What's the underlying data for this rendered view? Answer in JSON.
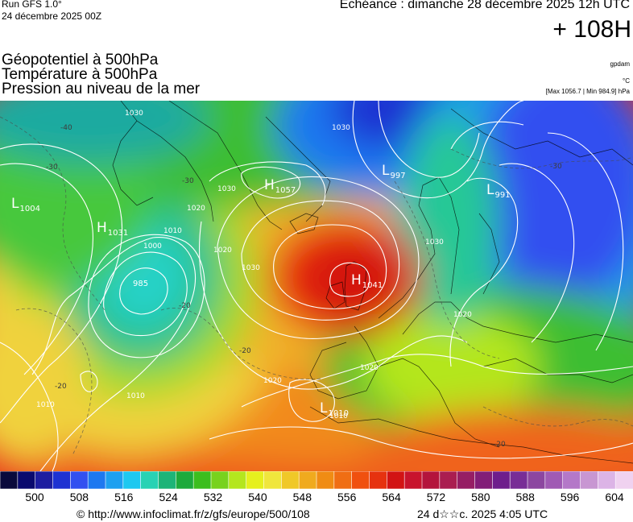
{
  "header": {
    "model": "Run GFS 1.0°",
    "run_date": "24 décembre 2025 00Z",
    "echeance": "Echéance : dimanche 28 décembre 2025 12h UTC",
    "horizon": "+ 108H"
  },
  "variables": [
    "Géopotentiel à 500hPa",
    "Température à 500hPa",
    "Pression au niveau de la mer"
  ],
  "units": {
    "geopotential": "gpdam",
    "temperature": "°C"
  },
  "extremes": "[Max 1056.7 | Min 984.9] hPa",
  "map": {
    "pressure_systems": [
      {
        "type": "L",
        "value": "1004"
      },
      {
        "type": "H",
        "value": "1031"
      },
      {
        "type": "H",
        "value": "1057"
      },
      {
        "type": "L",
        "value": "997"
      },
      {
        "type": "L",
        "value": "991"
      },
      {
        "type": "H",
        "value": "1041"
      },
      {
        "type": "L",
        "value": "1010"
      },
      {
        "type": "L",
        "value": "985"
      }
    ],
    "isobar_labels": [
      "1030",
      "1030",
      "1030",
      "1020",
      "1010",
      "1000",
      "1020",
      "1030",
      "1020",
      "1010",
      "1010",
      "1030",
      "1020",
      "1020",
      "1010"
    ],
    "temperature_labels": [
      "-40",
      "-30",
      "-30",
      "-20",
      "-20",
      "-30",
      "-20",
      "-20"
    ]
  },
  "colorbar": {
    "labels": [
      "500",
      "508",
      "516",
      "524",
      "532",
      "540",
      "548",
      "556",
      "564",
      "572",
      "580",
      "588",
      "596",
      "604"
    ],
    "colors": [
      "#0a0a3c",
      "#0a0a6e",
      "#1e1ea0",
      "#1e32d2",
      "#3250f0",
      "#1e78f0",
      "#1ea0f0",
      "#1ec8f0",
      "#28d2b4",
      "#1eb478",
      "#1eaa3c",
      "#3cbe1e",
      "#78d21e",
      "#b4e61e",
      "#e6f01e",
      "#f0e63c",
      "#f0c828",
      "#f0aa1e",
      "#f08c14",
      "#f06e14",
      "#f0500f",
      "#e6320f",
      "#d21414",
      "#c8142d",
      "#b4143c",
      "#aa1e50",
      "#961e64",
      "#821e78",
      "#6e1e8c",
      "#782d96",
      "#8c46a0",
      "#a05ab4",
      "#b478c8",
      "#c896d2",
      "#dcb4e6",
      "#f0d2f0"
    ]
  },
  "footer": {
    "credit": "© http://www.infoclimat.fr/z/gfs/europe/500/108",
    "timestamp": "24 d☆☆c. 2025  4:05 UTC"
  }
}
